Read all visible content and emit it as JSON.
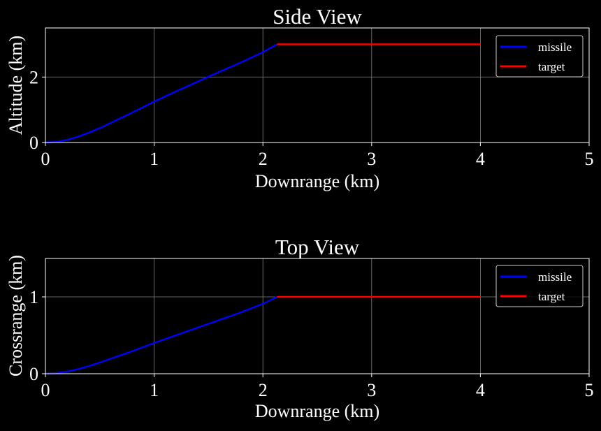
{
  "figure": {
    "background": "#000000",
    "foreground": "#ffffff",
    "grid_color": "#808080"
  },
  "chart_data": [
    {
      "type": "line",
      "title": "Side View",
      "xlabel": "Downrange (km)",
      "ylabel": "Altitude (km)",
      "xlim": [
        0,
        5
      ],
      "ylim": [
        0,
        3.5
      ],
      "xticks": [
        0,
        1,
        2,
        3,
        4,
        5
      ],
      "yticks": [
        0,
        2
      ],
      "grid": true,
      "legend_position": "top-right",
      "series": [
        {
          "name": "missile",
          "color": "#0000ff",
          "points": [
            [
              0,
              0
            ],
            [
              0.1,
              0.02
            ],
            [
              0.2,
              0.08
            ],
            [
              0.3,
              0.18
            ],
            [
              0.4,
              0.3
            ],
            [
              0.5,
              0.44
            ],
            [
              0.6,
              0.6
            ],
            [
              0.8,
              0.92
            ],
            [
              1.0,
              1.25
            ],
            [
              1.2,
              1.56
            ],
            [
              1.4,
              1.86
            ],
            [
              1.6,
              2.16
            ],
            [
              1.8,
              2.45
            ],
            [
              2.0,
              2.76
            ],
            [
              2.13,
              3.0
            ]
          ]
        },
        {
          "name": "target",
          "color": "#ff0000",
          "points": [
            [
              2.13,
              3.0
            ],
            [
              4.0,
              3.0
            ]
          ]
        }
      ]
    },
    {
      "type": "line",
      "title": "Top View",
      "xlabel": "Downrange (km)",
      "ylabel": "Crossrange (km)",
      "xlim": [
        0,
        5
      ],
      "ylim": [
        0,
        1.5
      ],
      "xticks": [
        0,
        1,
        2,
        3,
        4,
        5
      ],
      "yticks": [
        0,
        1
      ],
      "grid": true,
      "legend_position": "top-right",
      "series": [
        {
          "name": "missile",
          "color": "#0000ff",
          "points": [
            [
              0,
              0
            ],
            [
              0.1,
              0.008
            ],
            [
              0.2,
              0.028
            ],
            [
              0.3,
              0.06
            ],
            [
              0.4,
              0.1
            ],
            [
              0.5,
              0.145
            ],
            [
              0.6,
              0.195
            ],
            [
              0.8,
              0.295
            ],
            [
              1.0,
              0.4
            ],
            [
              1.2,
              0.5
            ],
            [
              1.4,
              0.6
            ],
            [
              1.6,
              0.7
            ],
            [
              1.8,
              0.8
            ],
            [
              2.0,
              0.91
            ],
            [
              2.13,
              1.0
            ]
          ]
        },
        {
          "name": "target",
          "color": "#ff0000",
          "points": [
            [
              2.13,
              1.0
            ],
            [
              4.0,
              1.0
            ]
          ]
        }
      ]
    }
  ]
}
